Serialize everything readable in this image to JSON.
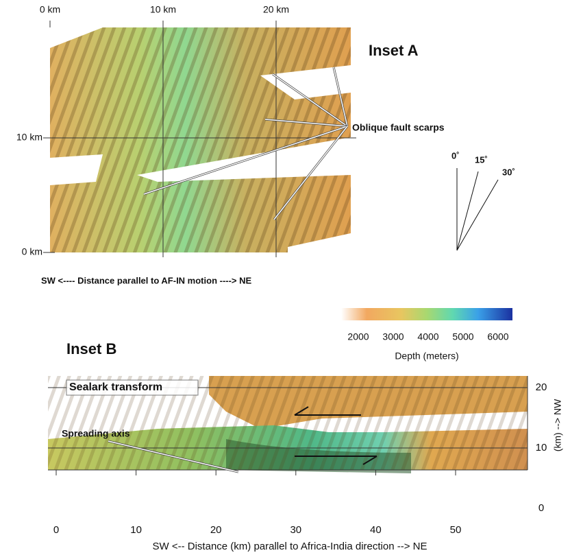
{
  "inset_a": {
    "title": "Inset A",
    "x_ticks": [
      {
        "value": 0,
        "label": "0 km"
      },
      {
        "value": 10,
        "label": "10 km"
      },
      {
        "value": 20,
        "label": "20 km"
      }
    ],
    "y_ticks": [
      {
        "value": 0,
        "label": "0 km"
      },
      {
        "value": 10,
        "label": "10 km"
      }
    ],
    "annotation": "Oblique fault scarps",
    "angles": [
      "0˚",
      "15˚",
      "30˚"
    ],
    "caption": "SW <---- Distance parallel to AF-IN motion  ----> NE"
  },
  "colorbar": {
    "ticks": [
      2000,
      3000,
      4000,
      5000,
      6000
    ],
    "label": "Depth (meters)"
  },
  "inset_b": {
    "title": "Inset B",
    "x_ticks": [
      0,
      10,
      20,
      30,
      40,
      50
    ],
    "y_ticks": [
      0,
      10,
      20
    ],
    "feature_label": "Sealark transform",
    "annotation": "Spreading axis",
    "y_label": "(km) --> NW",
    "x_label": "SW <-- Distance (km) parallel to Africa-India direction --> NE"
  }
}
